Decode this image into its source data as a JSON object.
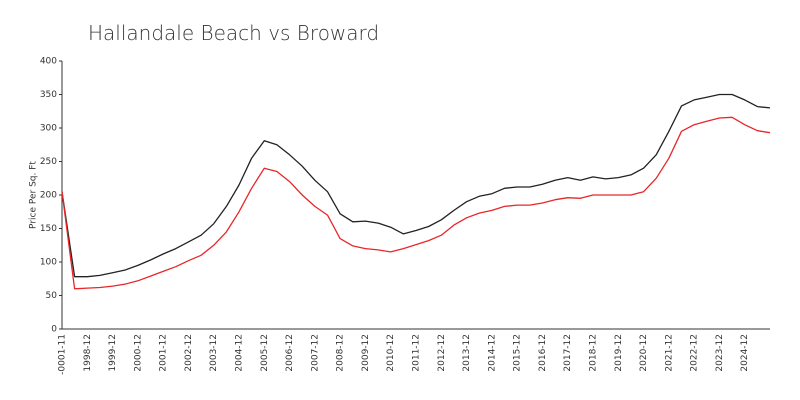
{
  "chart_data": {
    "type": "line",
    "title": "Hallandale Beach vs Broward",
    "y_label": "Price Per Sq. Ft",
    "categories": [
      "-0001-11",
      null,
      "1998-12",
      null,
      "1999-12",
      null,
      "2000-12",
      null,
      "2001-12",
      null,
      "2002-12",
      null,
      "2003-12",
      null,
      "2004-12",
      null,
      "2005-12",
      null,
      "2006-12",
      null,
      "2007-12",
      null,
      "2008-12",
      null,
      "2009-12",
      null,
      "2010-12",
      null,
      "2011-12",
      null,
      "2012-12",
      null,
      "2013-12",
      null,
      "2014-12",
      null,
      "2015-12",
      null,
      "2016-12",
      null,
      "2017-12",
      null,
      "2018-12",
      null,
      "2019-12",
      null,
      "2020-12",
      null,
      "2021-12",
      null,
      "2022-12",
      null,
      "2023-12",
      null,
      "2024-12",
      null,
      null
    ],
    "series": [
      {
        "color": "#222222",
        "values": [
          205,
          78,
          78,
          80,
          84,
          88,
          95,
          103,
          112,
          120,
          130,
          140,
          157,
          183,
          215,
          255,
          281,
          275,
          260,
          243,
          222,
          205,
          172,
          160,
          161,
          158,
          152,
          142,
          147,
          153,
          163,
          177,
          190,
          198,
          202,
          210,
          212,
          212,
          216,
          222,
          226,
          222,
          227,
          224,
          226,
          230,
          240,
          260,
          295,
          333,
          342,
          346,
          350,
          350,
          342,
          332,
          330
        ]
      },
      {
        "color": "#e8262a",
        "values": [
          205,
          60,
          61,
          62,
          64,
          67,
          72,
          79,
          86,
          93,
          102,
          110,
          125,
          145,
          175,
          210,
          240,
          235,
          220,
          200,
          183,
          170,
          135,
          124,
          120,
          118,
          115,
          120,
          126,
          132,
          140,
          155,
          166,
          173,
          177,
          183,
          185,
          185,
          188,
          193,
          196,
          195,
          200,
          200,
          200,
          200,
          205,
          225,
          255,
          295,
          305,
          310,
          315,
          316,
          305,
          296,
          293
        ]
      }
    ],
    "ylim": [
      0,
      400
    ],
    "yticks": [
      0,
      50,
      100,
      150,
      200,
      250,
      300,
      350,
      400
    ],
    "grid": false
  }
}
